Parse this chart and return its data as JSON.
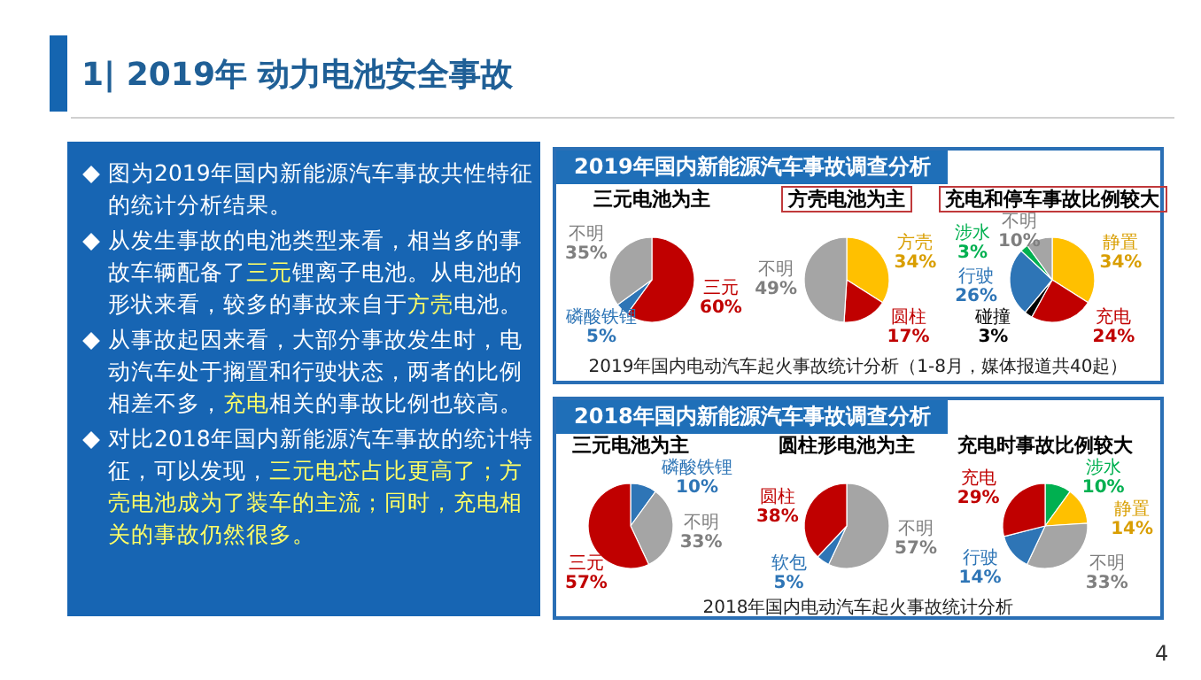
{
  "chart_data": [
    {
      "type": "other",
      "title": "1| 2019年 动力电池安全事故",
      "annotations": [
        "图为2019年国内新能源汽车事故共性特征的统计分析结果。",
        "从发生事故的电池类型来看，相当多的事故车辆配备了**三元**锂离子电池。从电池的形状来看，较多的事故来自于**方壳**电池。",
        "从事故起因来看，大部分事故发生时，电动汽车处于搁置和行驶状态，两者的比例相差不多，**充电**相关的事故比例也较高。",
        "对比2018年国内新能源汽车事故的统计特征，可以发现，**三元电芯占比更高了；方壳电池成为了装车的主流；同时，充电相关的事故仍然很多。**",
        "4"
      ]
    },
    {
      "type": "pie",
      "subtitle": "2019年国内新能源汽车事故调查分析",
      "title": "三元电池为主",
      "annotations": [
        "2019年国内电动汽车起火事故统计分析（1-8月，媒体报道共40起）"
      ],
      "categories": [
        "三元",
        "磷酸铁锂",
        "不明"
      ],
      "values": [
        60,
        5,
        35
      ],
      "value_labels": [
        "60%",
        "5%",
        "35%"
      ],
      "colors": [
        "#c00000",
        "#2e75b6",
        "#a5a5a5"
      ]
    },
    {
      "type": "pie",
      "title": "方壳电池为主",
      "categories": [
        "方壳",
        "圆柱",
        "不明"
      ],
      "values": [
        34,
        17,
        49
      ],
      "value_labels": [
        "34%",
        "17%",
        "49%"
      ],
      "colors": [
        "#ffc000",
        "#c00000",
        "#a5a5a5"
      ]
    },
    {
      "type": "pie",
      "title": "充电和停车事故比例较大",
      "categories": [
        "静置",
        "充电",
        "碰撞",
        "行驶",
        "涉水",
        "不明"
      ],
      "values": [
        34,
        24,
        3,
        26,
        3,
        10
      ],
      "value_labels": [
        "34%",
        "24%",
        "3%",
        "26%",
        "3%",
        "10%"
      ],
      "colors": [
        "#ffc000",
        "#c00000",
        "#000000",
        "#2e75b6",
        "#00b050",
        "#a5a5a5"
      ]
    },
    {
      "type": "pie",
      "subtitle": "2018年国内新能源汽车事故调查分析",
      "title": "三元电池为主",
      "annotations": [
        "2018年国内电动汽车起火事故统计分析"
      ],
      "categories": [
        "磷酸铁锂",
        "不明",
        "三元"
      ],
      "values": [
        10,
        33,
        57
      ],
      "value_labels": [
        "10%",
        "33%",
        "57%"
      ],
      "colors": [
        "#2e75b6",
        "#a5a5a5",
        "#c00000"
      ]
    },
    {
      "type": "pie",
      "title": "圆柱形电池为主",
      "categories": [
        "不明",
        "软包",
        "圆柱"
      ],
      "values": [
        57,
        5,
        38
      ],
      "value_labels": [
        "57%",
        "5%",
        "38%"
      ],
      "colors": [
        "#a5a5a5",
        "#2e75b6",
        "#c00000"
      ]
    },
    {
      "type": "pie",
      "title": "充电时事故比例较大",
      "categories": [
        "涉水",
        "静置",
        "不明",
        "行驶",
        "充电"
      ],
      "values": [
        10,
        14,
        33,
        14,
        29
      ],
      "value_labels": [
        "10%",
        "14%",
        "33%",
        "14%",
        "29%"
      ],
      "colors": [
        "#00b050",
        "#ffc000",
        "#a5a5a5",
        "#2e75b6",
        "#c00000"
      ]
    }
  ]
}
